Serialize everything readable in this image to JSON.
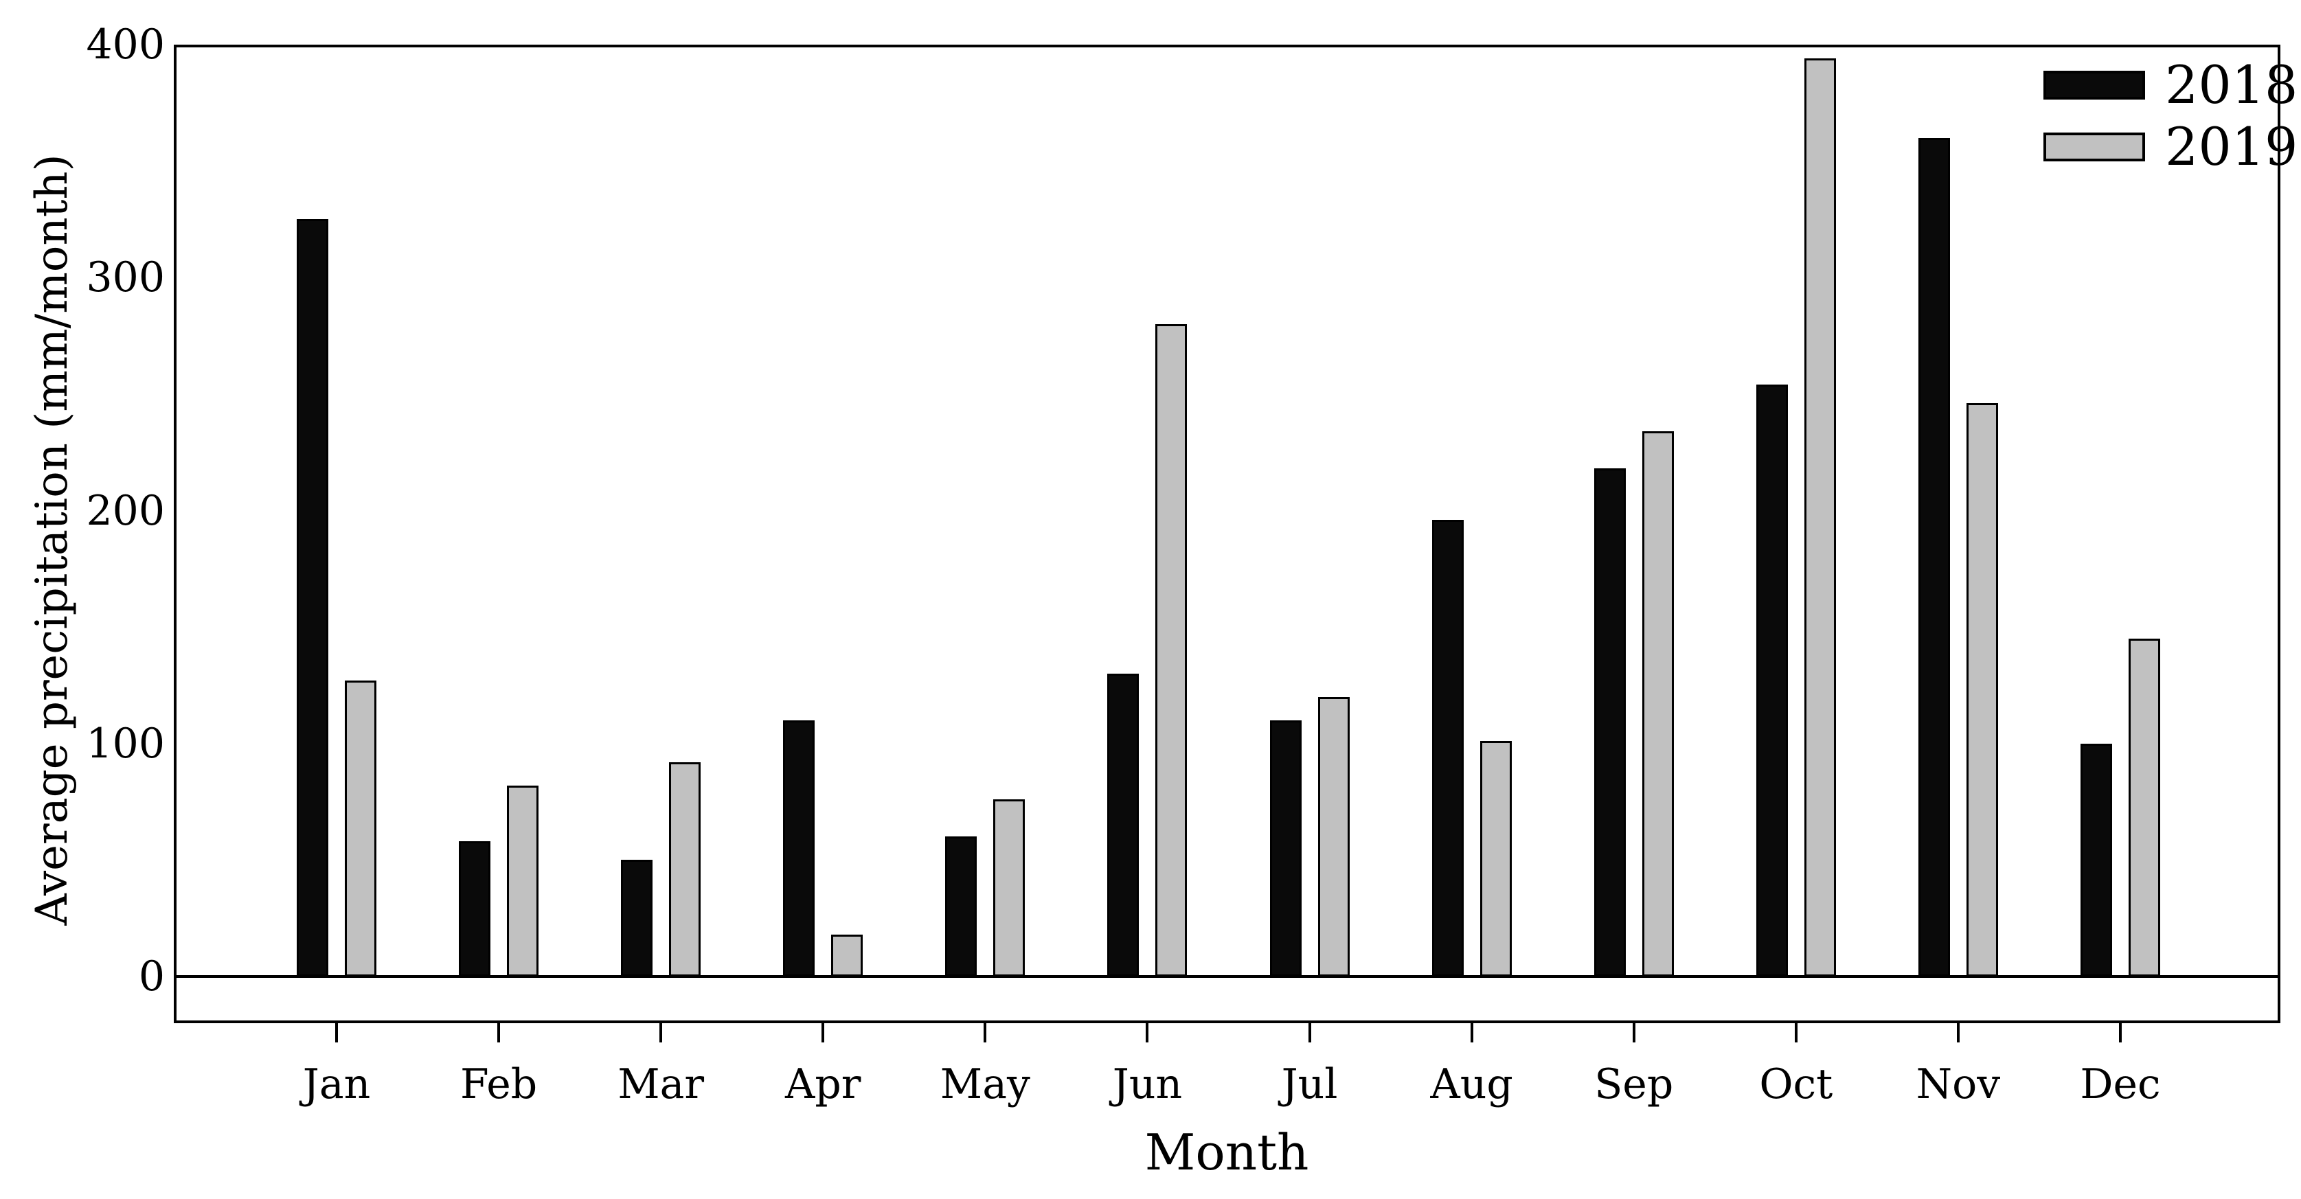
{
  "chart_data": {
    "type": "bar",
    "title": "",
    "xlabel": "Month",
    "ylabel": "Average precipitation (mm/month)",
    "categories": [
      "Jan",
      "Feb",
      "Mar",
      "Apr",
      "May",
      "Jun",
      "Jul",
      "Aug",
      "Sep",
      "Oct",
      "Nov",
      "Dec"
    ],
    "series": [
      {
        "name": "2018",
        "color": "#0a0a0a",
        "values": [
          325,
          58,
          50,
          110,
          60,
          130,
          110,
          196,
          218,
          254,
          360,
          100
        ]
      },
      {
        "name": "2019",
        "color": "#c1c1c1",
        "values": [
          127,
          82,
          92,
          18,
          76,
          280,
          120,
          101,
          234,
          394,
          246,
          145
        ]
      }
    ],
    "ylim": [
      0,
      400
    ],
    "yticks": [
      0,
      100,
      200,
      300,
      400
    ],
    "grid": false,
    "legend_position": "top-right"
  }
}
